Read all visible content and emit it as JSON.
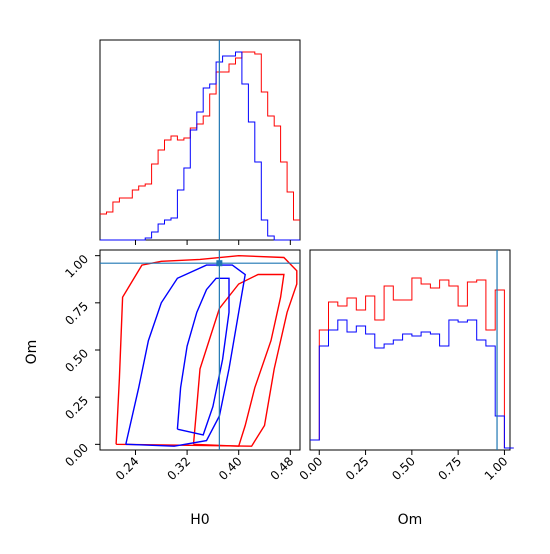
{
  "colors": {
    "red": "#ff0000",
    "blue": "#0000ff",
    "truth": "#1f77b4",
    "axis": "#000000"
  },
  "chart_data": [
    {
      "type": "histogram",
      "panel": "H0 marginal",
      "x": [
        0.19,
        0.2,
        0.21,
        0.22,
        0.23,
        0.24,
        0.25,
        0.26,
        0.27,
        0.28,
        0.29,
        0.3,
        0.31,
        0.32,
        0.33,
        0.34,
        0.35,
        0.36,
        0.37,
        0.38,
        0.39,
        0.4,
        0.41,
        0.42,
        0.43,
        0.44,
        0.45,
        0.46,
        0.47,
        0.48,
        0.49
      ],
      "series": [
        {
          "color": "#ff0000",
          "values": [
            0.13,
            0.14,
            0.19,
            0.21,
            0.21,
            0.25,
            0.27,
            0.28,
            0.38,
            0.45,
            0.5,
            0.52,
            0.5,
            0.51,
            0.56,
            0.58,
            0.62,
            0.73,
            0.84,
            0.84,
            0.88,
            0.91,
            0.94,
            0.94,
            0.93,
            0.74,
            0.62,
            0.57,
            0.39,
            0.24,
            0.1
          ]
        },
        {
          "color": "#0000ff",
          "values": [
            0.0,
            0.0,
            0.0,
            0.0,
            0.0,
            0.0,
            0.0,
            0.01,
            0.04,
            0.08,
            0.1,
            0.11,
            0.25,
            0.36,
            0.55,
            0.64,
            0.76,
            0.78,
            0.89,
            0.92,
            0.92,
            0.94,
            0.78,
            0.59,
            0.39,
            0.1,
            0.02,
            0.0,
            0.0,
            0.0,
            0.0
          ]
        }
      ],
      "truth": 0.37,
      "xlim": [
        0.185,
        0.495
      ]
    },
    {
      "type": "contour",
      "panel": "H0 vs Om",
      "xlabel": "H0",
      "ylabel": "Om",
      "xticks": [
        "0.24",
        "0.32",
        "0.40",
        "0.48"
      ],
      "yticks": [
        "0.00",
        "0.25",
        "0.50",
        "0.75",
        "1.00"
      ],
      "xlim": [
        0.185,
        0.495
      ],
      "ylim": [
        -0.03,
        1.03
      ],
      "truth": {
        "x": 0.37,
        "y": 0.96
      },
      "contours": [
        {
          "color": "#ff0000",
          "level": "outer",
          "points": [
            [
              0.21,
              0.0
            ],
            [
              0.215,
              0.35
            ],
            [
              0.22,
              0.78
            ],
            [
              0.25,
              0.95
            ],
            [
              0.28,
              0.97
            ],
            [
              0.34,
              0.98
            ],
            [
              0.4,
              1.0
            ],
            [
              0.47,
              0.99
            ],
            [
              0.49,
              0.92
            ],
            [
              0.49,
              0.85
            ],
            [
              0.475,
              0.7
            ],
            [
              0.455,
              0.4
            ],
            [
              0.44,
              0.1
            ],
            [
              0.42,
              -0.01
            ],
            [
              0.21,
              0.0
            ]
          ]
        },
        {
          "color": "#ff0000",
          "level": "inner",
          "points": [
            [
              0.33,
              0.0
            ],
            [
              0.335,
              0.2
            ],
            [
              0.34,
              0.4
            ],
            [
              0.37,
              0.72
            ],
            [
              0.4,
              0.85
            ],
            [
              0.43,
              0.9
            ],
            [
              0.47,
              0.9
            ],
            [
              0.465,
              0.78
            ],
            [
              0.45,
              0.55
            ],
            [
              0.425,
              0.3
            ],
            [
              0.41,
              0.1
            ],
            [
              0.4,
              -0.01
            ],
            [
              0.33,
              0.0
            ]
          ]
        },
        {
          "color": "#0000ff",
          "level": "outer",
          "points": [
            [
              0.225,
              0.0
            ],
            [
              0.245,
              0.3
            ],
            [
              0.26,
              0.55
            ],
            [
              0.28,
              0.75
            ],
            [
              0.305,
              0.88
            ],
            [
              0.35,
              0.95
            ],
            [
              0.39,
              0.95
            ],
            [
              0.41,
              0.9
            ],
            [
              0.4,
              0.7
            ],
            [
              0.385,
              0.4
            ],
            [
              0.37,
              0.15
            ],
            [
              0.35,
              0.02
            ],
            [
              0.3,
              -0.01
            ],
            [
              0.225,
              0.0
            ]
          ]
        },
        {
          "color": "#0000ff",
          "level": "inner",
          "points": [
            [
              0.305,
              0.08
            ],
            [
              0.31,
              0.3
            ],
            [
              0.32,
              0.52
            ],
            [
              0.335,
              0.7
            ],
            [
              0.35,
              0.82
            ],
            [
              0.365,
              0.88
            ],
            [
              0.385,
              0.88
            ],
            [
              0.385,
              0.7
            ],
            [
              0.375,
              0.45
            ],
            [
              0.36,
              0.2
            ],
            [
              0.345,
              0.05
            ],
            [
              0.305,
              0.08
            ]
          ]
        }
      ]
    },
    {
      "type": "histogram",
      "panel": "Om marginal",
      "xlabel": "Om",
      "xticks": [
        "0.00",
        "0.25",
        "0.50",
        "0.75",
        "1.00"
      ],
      "x": [
        -0.025,
        0.025,
        0.075,
        0.125,
        0.175,
        0.225,
        0.275,
        0.325,
        0.375,
        0.425,
        0.475,
        0.525,
        0.575,
        0.625,
        0.675,
        0.725,
        0.775,
        0.825,
        0.875,
        0.925,
        0.975,
        1.025
      ],
      "series": [
        {
          "color": "#ff0000",
          "values": [
            0.05,
            0.6,
            0.74,
            0.72,
            0.76,
            0.7,
            0.77,
            0.65,
            0.82,
            0.75,
            0.75,
            0.86,
            0.83,
            0.81,
            0.85,
            0.82,
            0.72,
            0.84,
            0.85,
            0.6,
            0.8,
            0.01
          ]
        },
        {
          "color": "#0000ff",
          "values": [
            0.05,
            0.52,
            0.6,
            0.65,
            0.59,
            0.62,
            0.58,
            0.51,
            0.53,
            0.55,
            0.58,
            0.57,
            0.59,
            0.58,
            0.52,
            0.65,
            0.64,
            0.65,
            0.55,
            0.52,
            0.17,
            0.01
          ]
        }
      ],
      "truth": 0.96,
      "xlim": [
        -0.05,
        1.03
      ]
    }
  ]
}
